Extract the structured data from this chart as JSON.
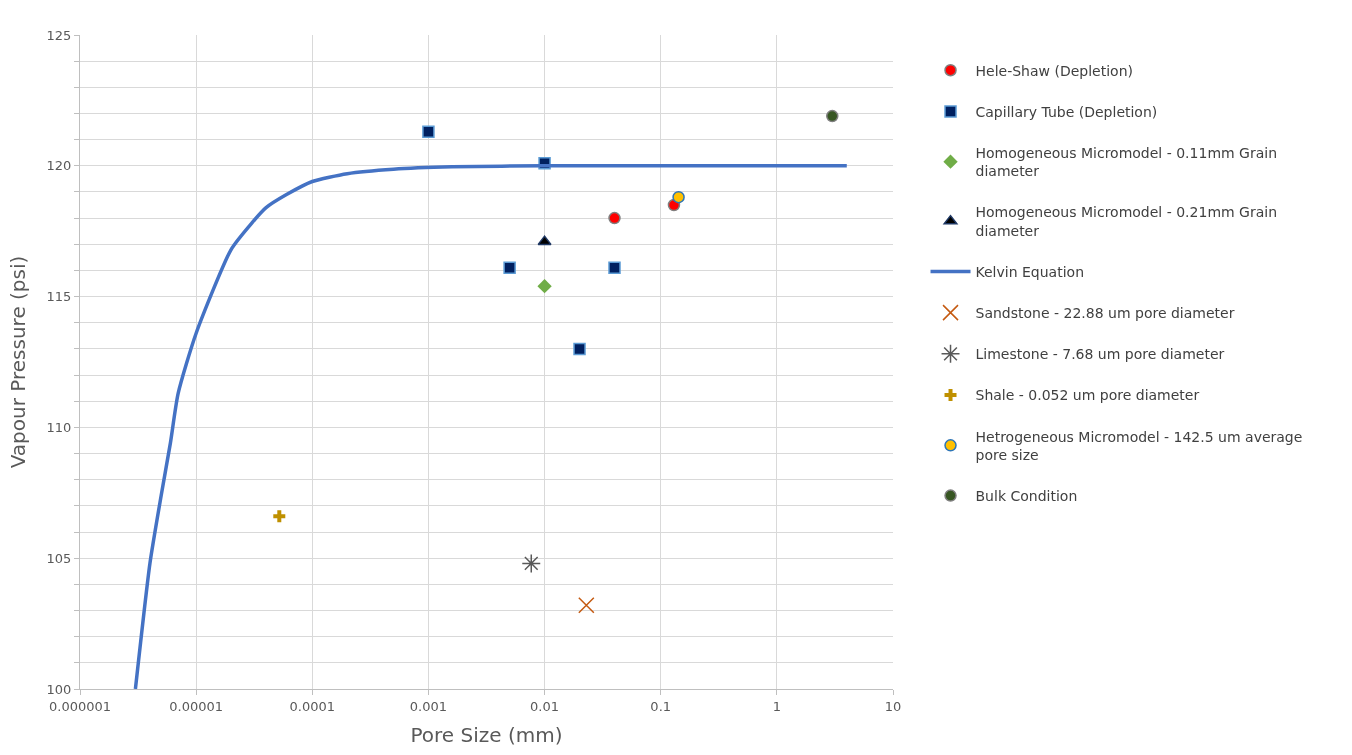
{
  "chart_data": {
    "type": "scatter",
    "xlabel": "Pore Size (mm)",
    "ylabel": "Vapour Pressure (psi)",
    "log": "x",
    "xlim": [
      1e-06,
      10
    ],
    "xticks": [
      {
        "value": 1e-06,
        "label": "0.000001"
      },
      {
        "value": 1e-05,
        "label": "0.00001"
      },
      {
        "value": 0.0001,
        "label": "0.0001"
      },
      {
        "value": 0.001,
        "label": "0.001"
      },
      {
        "value": 0.01,
        "label": "0.01"
      },
      {
        "value": 0.1,
        "label": "0.1"
      },
      {
        "value": 1,
        "label": "1"
      },
      {
        "value": 10,
        "label": "10"
      }
    ],
    "ylim": [
      100,
      125
    ],
    "yticks": [
      100,
      {
        "value": 101,
        "label": null
      },
      {
        "value": 102,
        "label": null
      },
      {
        "value": 103,
        "label": null
      },
      {
        "value": 104,
        "label": null
      },
      105,
      {
        "value": 106,
        "label": null
      },
      {
        "value": 107,
        "label": null
      },
      {
        "value": 108,
        "label": null
      },
      {
        "value": 109,
        "label": null
      },
      110,
      {
        "value": 111,
        "label": null
      },
      {
        "value": 112,
        "label": null
      },
      {
        "value": 113,
        "label": null
      },
      {
        "value": 114,
        "label": null
      },
      115,
      {
        "value": 116,
        "label": null
      },
      {
        "value": 117,
        "label": null
      },
      {
        "value": 118,
        "label": null
      },
      {
        "value": 119,
        "label": null
      },
      120,
      {
        "value": 121,
        "label": null
      },
      {
        "value": 122,
        "label": null
      },
      {
        "value": 123,
        "label": null
      },
      {
        "value": 124,
        "label": null
      },
      125
    ],
    "grid": true,
    "legend": "right",
    "series": [
      {
        "name": "Hele-Shaw (Depletion)",
        "color": "#ff0000",
        "marker": "circle",
        "x": [
          0.04,
          0.13
        ],
        "values": [
          118.0,
          118.5
        ]
      },
      {
        "name": "Capillary Tube (Depletion)",
        "color": "#002060",
        "marker": "square",
        "x": [
          0.001,
          0.01,
          0.005,
          0.04,
          0.02
        ],
        "values": [
          121.3,
          120.1,
          116.1,
          116.1,
          113.0
        ]
      },
      {
        "name": "Homogeneous Micromodel - 0.11mm Grain diameter",
        "color": "#70ad47",
        "marker": "diamond",
        "x": [
          0.01
        ],
        "values": [
          115.4
        ]
      },
      {
        "name": "Homogeneous Micromodel - 0.21mm Grain diameter",
        "color": "#000000",
        "marker": "triangle",
        "x": [
          0.01
        ],
        "values": [
          117.1
        ]
      },
      {
        "name": "Kelvin Equation",
        "type": "line",
        "color": "#4472c4",
        "marker": "none",
        "line_style": "solid",
        "x": [
          3e-06,
          4e-06,
          5e-06,
          6e-06,
          7e-06,
          1e-05,
          2e-05,
          3e-05,
          4e-05,
          6e-05,
          0.0001,
          0.0002,
          0.0005,
          0.0016,
          0.01,
          4
        ],
        "values": [
          100.0,
          104.8,
          107.4,
          109.4,
          111.3,
          113.6,
          116.8,
          117.8,
          118.4,
          118.9,
          119.4,
          119.7,
          119.87,
          119.96,
          120.0,
          120.0
        ]
      },
      {
        "name": "Sandstone - 22.88 um pore diameter",
        "color": "#c55a11",
        "marker": "cross",
        "x": [
          0.02288
        ],
        "values": [
          103.2
        ]
      },
      {
        "name": "Limestone - 7.68 um pore diameter",
        "color": "#595959",
        "marker": "cross",
        "x": [
          0.00768
        ],
        "values": [
          104.8
        ]
      },
      {
        "name": "Shale - 0.052 um pore diameter",
        "color": "#bf9000",
        "marker": "cross",
        "x": [
          5.2e-05
        ],
        "values": [
          106.6
        ]
      },
      {
        "name": "Hetrogeneous Micromodel - 142.5 um average pore size",
        "color": "#ffc000",
        "marker": "circle",
        "x": [
          0.1425
        ],
        "values": [
          118.8
        ]
      },
      {
        "name": "Bulk Condition",
        "color": "#375623",
        "marker": "circle",
        "x": [
          3
        ],
        "values": [
          121.9
        ]
      }
    ]
  }
}
